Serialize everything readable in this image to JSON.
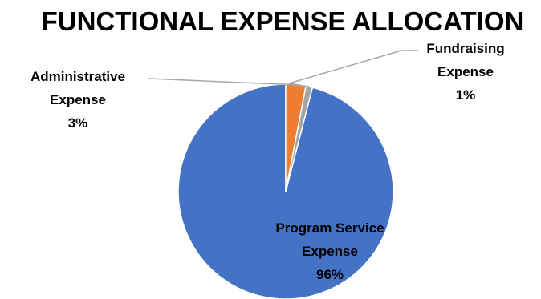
{
  "chart_data": {
    "type": "pie",
    "title": "FUNCTIONAL EXPENSE ALLOCATION",
    "slices": [
      {
        "label_lines": [
          "Program Service",
          "Expense"
        ],
        "percent_label": "96%",
        "value": 96,
        "color": "#4472C4"
      },
      {
        "label_lines": [
          "Administrative",
          "Expense"
        ],
        "percent_label": "3%",
        "value": 3,
        "color": "#ED7D31"
      },
      {
        "label_lines": [
          "Fundraising",
          "Expense"
        ],
        "percent_label": "1%",
        "value": 1,
        "color": "#A5A5A5"
      }
    ],
    "legend": "none",
    "slice_border_color": "#FFFFFF",
    "leader_line_color": "#A6A6A6"
  }
}
